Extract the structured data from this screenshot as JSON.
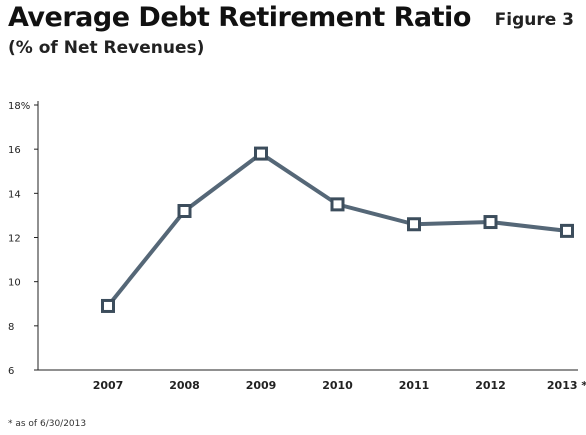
{
  "header": {
    "title": "Average Debt Retirement Ratio",
    "subtitle": "(% of Net Revenues)",
    "figure_label": "Figure 3"
  },
  "footnote": "* as of 6/30/2013",
  "colors": {
    "line": "#556777",
    "marker_stroke": "#3c4d5c",
    "marker_fill": "#ffffff",
    "axis": "#222222"
  },
  "chart_data": {
    "type": "line",
    "title": "Average Debt Retirement Ratio",
    "subtitle": "(% of Net Revenues)",
    "categories": [
      "2007",
      "2008",
      "2009",
      "2010",
      "2011",
      "2012",
      "2013 *"
    ],
    "series": [
      {
        "values": [
          8.9,
          13.2,
          15.8,
          13.5,
          12.6,
          12.7,
          12.3
        ]
      }
    ],
    "y_ticks": [
      "6",
      "8",
      "10",
      "12",
      "14",
      "16",
      "18%"
    ],
    "ylim": [
      6,
      18
    ],
    "grid": false,
    "legend": "none"
  }
}
